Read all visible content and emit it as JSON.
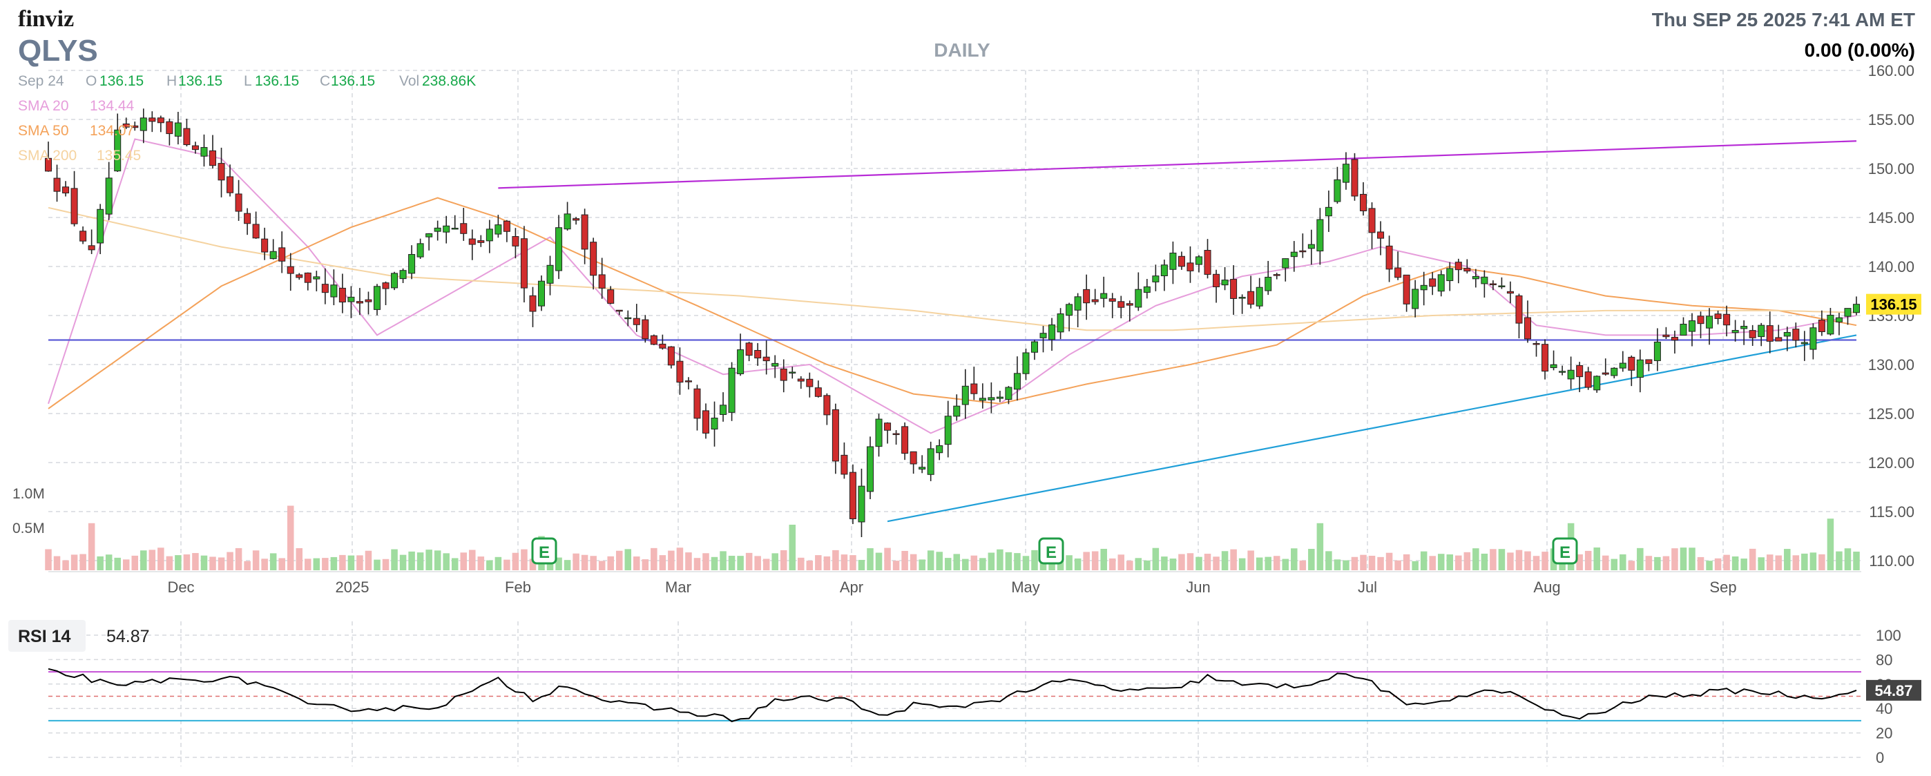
{
  "header": {
    "logo": "finviz",
    "ticker": "QLYS",
    "timeframe": "DAILY",
    "datetime": "Thu SEP 25 2025 7:41 AM ET",
    "change": "0.00 (0.00%)"
  },
  "ohlc": {
    "date": "Sep 24",
    "o_label": "O",
    "o": "136.15",
    "h_label": "H",
    "h": "136.15",
    "l_label": "L",
    "l": "136.15",
    "c_label": "C",
    "c": "136.15",
    "vol_label": "Vol",
    "vol": "238.86K"
  },
  "sma": [
    {
      "label": "SMA 20",
      "value": "134.44",
      "color": "#e69ddb"
    },
    {
      "label": "SMA 50",
      "value": "134.07",
      "color": "#f4a25a"
    },
    {
      "label": "SMA 200",
      "value": "135.45",
      "color": "#f5d3a0"
    }
  ],
  "colors": {
    "up": "#2fb62f",
    "down": "#d12d2d",
    "up_vol": "#9fdc9f",
    "down_vol": "#f3b7b7",
    "resistance": "#b72bd6",
    "support": "#1f9fd8",
    "horizontal": "#5c5cd6",
    "rsi_line": "#000000",
    "rsi_upper": "#c44fd6",
    "rsi_lower": "#2db0d9",
    "rsi_mid": "#e07070",
    "price_tag_bg": "#ffe533",
    "rsi_tag_bg": "#444444"
  },
  "price_tag": "136.15",
  "rsi": {
    "label": "RSI 14",
    "value": "54.87",
    "tag": "54.87"
  },
  "earnings_icon": "E",
  "chart_data": {
    "type": "candlestick",
    "title": "QLYS",
    "period": "DAILY",
    "price_axis": {
      "min": 110,
      "max": 160,
      "ticks": [
        "160.00",
        "155.00",
        "150.00",
        "145.00",
        "140.00",
        "135.00",
        "130.00",
        "125.00",
        "120.00",
        "115.00",
        "110.00"
      ]
    },
    "volume_axis": {
      "ticks": [
        "1.0M",
        "0.5M"
      ]
    },
    "x_ticks": [
      "Dec",
      "2025",
      "Feb",
      "Mar",
      "Apr",
      "May",
      "Jun",
      "Jul",
      "Aug",
      "Sep"
    ],
    "earnings_markers": [
      "Feb",
      "May",
      "Aug"
    ],
    "anchors": [
      {
        "i": 0,
        "p": 150.5
      },
      {
        "i": 5,
        "p": 141
      },
      {
        "i": 8,
        "p": 153
      },
      {
        "i": 13,
        "p": 155
      },
      {
        "i": 18,
        "p": 152
      },
      {
        "i": 22,
        "p": 146
      },
      {
        "i": 27,
        "p": 140
      },
      {
        "i": 32,
        "p": 138
      },
      {
        "i": 36,
        "p": 135.5
      },
      {
        "i": 41,
        "p": 140
      },
      {
        "i": 46,
        "p": 144
      },
      {
        "i": 49,
        "p": 142
      },
      {
        "i": 53,
        "p": 144
      },
      {
        "i": 56,
        "p": 136
      },
      {
        "i": 60,
        "p": 146
      },
      {
        "i": 65,
        "p": 136
      },
      {
        "i": 70,
        "p": 132
      },
      {
        "i": 74,
        "p": 128
      },
      {
        "i": 76,
        "p": 122.5
      },
      {
        "i": 80,
        "p": 131
      },
      {
        "i": 85,
        "p": 129
      },
      {
        "i": 89,
        "p": 127
      },
      {
        "i": 93,
        "p": 115
      },
      {
        "i": 96,
        "p": 125
      },
      {
        "i": 101,
        "p": 119
      },
      {
        "i": 106,
        "p": 127
      },
      {
        "i": 110,
        "p": 126
      },
      {
        "i": 113,
        "p": 132
      },
      {
        "i": 118,
        "p": 137
      },
      {
        "i": 124,
        "p": 136
      },
      {
        "i": 129,
        "p": 140.5
      },
      {
        "i": 133,
        "p": 140.5
      },
      {
        "i": 138,
        "p": 136
      },
      {
        "i": 142,
        "p": 139
      },
      {
        "i": 147,
        "p": 144
      },
      {
        "i": 150,
        "p": 150
      },
      {
        "i": 153,
        "p": 144
      },
      {
        "i": 157,
        "p": 136
      },
      {
        "i": 163,
        "p": 140.5
      },
      {
        "i": 168,
        "p": 138
      },
      {
        "i": 173,
        "p": 130
      },
      {
        "i": 178,
        "p": 128
      },
      {
        "i": 184,
        "p": 130
      },
      {
        "i": 190,
        "p": 134.5
      },
      {
        "i": 196,
        "p": 133.5
      },
      {
        "i": 201,
        "p": 132.5
      },
      {
        "i": 204,
        "p": 133
      },
      {
        "i": 209,
        "p": 136.15
      }
    ],
    "volume_spikes": [
      {
        "i": 5,
        "v": 0.62
      },
      {
        "i": 28,
        "v": 0.85
      },
      {
        "i": 57,
        "v": 0.45
      },
      {
        "i": 86,
        "v": 0.6
      },
      {
        "i": 147,
        "v": 0.62
      },
      {
        "i": 176,
        "v": 0.62
      },
      {
        "i": 206,
        "v": 0.68
      }
    ],
    "sma_series": {
      "SMA 20": [
        [
          0,
          126
        ],
        [
          10,
          153
        ],
        [
          20,
          151
        ],
        [
          30,
          142
        ],
        [
          38,
          133
        ],
        [
          48,
          138
        ],
        [
          58,
          143
        ],
        [
          68,
          133
        ],
        [
          78,
          129
        ],
        [
          88,
          130
        ],
        [
          96,
          126
        ],
        [
          102,
          123
        ],
        [
          110,
          126
        ],
        [
          118,
          131
        ],
        [
          128,
          136
        ],
        [
          138,
          139
        ],
        [
          148,
          140.5
        ],
        [
          154,
          142
        ],
        [
          164,
          140
        ],
        [
          172,
          134
        ],
        [
          180,
          133
        ],
        [
          190,
          133
        ],
        [
          200,
          133.5
        ],
        [
          209,
          135
        ]
      ],
      "SMA 50": [
        [
          0,
          125.5
        ],
        [
          20,
          138
        ],
        [
          35,
          144
        ],
        [
          45,
          147
        ],
        [
          52,
          145
        ],
        [
          62,
          141
        ],
        [
          75,
          136
        ],
        [
          90,
          130
        ],
        [
          100,
          127
        ],
        [
          110,
          126
        ],
        [
          120,
          128
        ],
        [
          132,
          130
        ],
        [
          142,
          132
        ],
        [
          152,
          137
        ],
        [
          162,
          140
        ],
        [
          170,
          139
        ],
        [
          180,
          137
        ],
        [
          190,
          136
        ],
        [
          200,
          135.5
        ],
        [
          209,
          134
        ]
      ],
      "SMA 200": [
        [
          0,
          146
        ],
        [
          20,
          142
        ],
        [
          40,
          139
        ],
        [
          60,
          138
        ],
        [
          80,
          137
        ],
        [
          100,
          135.5
        ],
        [
          120,
          133.5
        ],
        [
          130,
          133.5
        ],
        [
          140,
          134
        ],
        [
          160,
          135
        ],
        [
          180,
          135.5
        ],
        [
          200,
          135.5
        ],
        [
          209,
          135.3
        ]
      ]
    },
    "trendlines": [
      {
        "name": "resistance",
        "from": [
          52,
          148
        ],
        "to": [
          209,
          152.8
        ]
      },
      {
        "name": "support",
        "from": [
          97,
          114
        ],
        "to": [
          209,
          133
        ]
      },
      {
        "name": "horizontal",
        "from": [
          0,
          132.5
        ],
        "to": [
          209,
          132.5
        ]
      }
    ],
    "rsi_axis": {
      "min": 0,
      "max": 100,
      "ticks": [
        "100",
        "80",
        "60",
        "40",
        "20",
        "0"
      ],
      "upper": 70,
      "lower": 30,
      "mid": 50
    },
    "rsi_anchors": [
      [
        0,
        70
      ],
      [
        4,
        66
      ],
      [
        8,
        57
      ],
      [
        12,
        63
      ],
      [
        16,
        63
      ],
      [
        20,
        65
      ],
      [
        25,
        60
      ],
      [
        30,
        42
      ],
      [
        35,
        40
      ],
      [
        40,
        40
      ],
      [
        45,
        42
      ],
      [
        52,
        63
      ],
      [
        56,
        48
      ],
      [
        60,
        60
      ],
      [
        64,
        47
      ],
      [
        68,
        42
      ],
      [
        74,
        37
      ],
      [
        80,
        30
      ],
      [
        84,
        47
      ],
      [
        88,
        48
      ],
      [
        92,
        48
      ],
      [
        96,
        33
      ],
      [
        100,
        43
      ],
      [
        104,
        40
      ],
      [
        110,
        48
      ],
      [
        114,
        57
      ],
      [
        118,
        63
      ],
      [
        124,
        55
      ],
      [
        130,
        55
      ],
      [
        134,
        66
      ],
      [
        138,
        59
      ],
      [
        144,
        58
      ],
      [
        150,
        68
      ],
      [
        153,
        62
      ],
      [
        157,
        41
      ],
      [
        163,
        50
      ],
      [
        168,
        55
      ],
      [
        173,
        40
      ],
      [
        176,
        31
      ],
      [
        180,
        38
      ],
      [
        184,
        48
      ],
      [
        190,
        52
      ],
      [
        196,
        55
      ],
      [
        200,
        52
      ],
      [
        204,
        49
      ],
      [
        209,
        54.87
      ]
    ]
  }
}
